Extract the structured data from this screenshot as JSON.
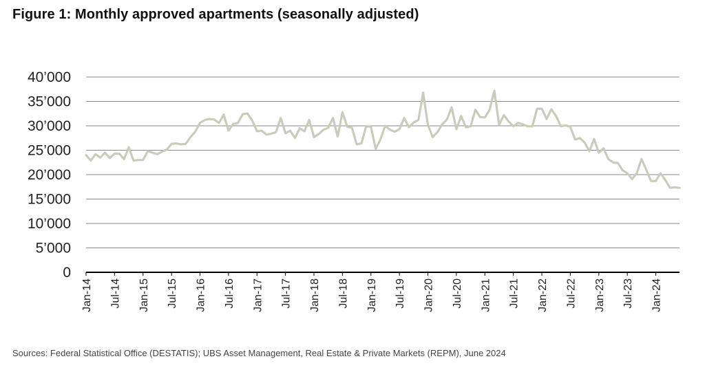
{
  "title": "Figure 1: Monthly approved apartments (seasonally adjusted)",
  "source": "Sources: Federal Statistical Office (DESTATIS); UBS Asset Management, Real Estate & Private Markets (REPM), June 2024",
  "chart_data": {
    "type": "line",
    "title": "Figure 1: Monthly approved apartments (seasonally adjusted)",
    "xlabel": "",
    "ylabel": "",
    "ylim": [
      0,
      40000
    ],
    "y_ticks": [
      0,
      5000,
      10000,
      15000,
      20000,
      25000,
      30000,
      35000,
      40000
    ],
    "y_tick_labels": [
      "0",
      "5’000",
      "10’000",
      "15’000",
      "20’000",
      "25’000",
      "30’000",
      "35’000",
      "40’000"
    ],
    "x_tick_labels": [
      "Jan-14",
      "Jul-14",
      "Jan-15",
      "Jul-15",
      "Jan-16",
      "Jul-16",
      "Jan-17",
      "Jul-17",
      "Jan-18",
      "Jul-18",
      "Jan-19",
      "Jul-19",
      "Jan-20",
      "Jul-20",
      "Jan-21",
      "Jul-21",
      "Jan-22",
      "Jul-22",
      "Jan-23",
      "Jul-23",
      "Jan-24"
    ],
    "x_start": "2014-01",
    "grid": true,
    "line_color": "#c9cbbd",
    "series": [
      {
        "values": [
          24000,
          22900,
          24200,
          23500,
          24500,
          23400,
          24300,
          24300,
          23200,
          25600,
          22900,
          23000,
          23000,
          24800,
          24500,
          24200,
          24700,
          25100,
          26300,
          26400,
          26200,
          26300,
          27700,
          28800,
          30600,
          31200,
          31400,
          31300,
          30600,
          32300,
          29000,
          30400,
          30600,
          32400,
          32500,
          31100,
          28900,
          29000,
          28200,
          28400,
          28700,
          31600,
          28500,
          29000,
          27500,
          29500,
          28900,
          31200,
          27700,
          28300,
          29200,
          29600,
          31600,
          27800,
          32800,
          29800,
          29600,
          26200,
          26400,
          29900,
          29800,
          25300,
          27200,
          30000,
          29200,
          28800,
          29300,
          31600,
          29700,
          30700,
          31200,
          36800,
          30200,
          27700,
          28700,
          30300,
          31300,
          33800,
          29300,
          32000,
          29700,
          29900,
          33300,
          31800,
          31700,
          33300,
          37200,
          30200,
          32200,
          30900,
          29900,
          30600,
          30300,
          29900,
          29900,
          33500,
          33500,
          31400,
          33400,
          32000,
          29900,
          30100,
          29800,
          27200,
          27500,
          26600,
          24800,
          27300,
          24500,
          25400,
          23200,
          22500,
          22400,
          20900,
          20300,
          19100,
          20300,
          23200,
          21000,
          18700,
          18700,
          20300,
          18900,
          17300,
          17400,
          17300
        ]
      }
    ]
  }
}
